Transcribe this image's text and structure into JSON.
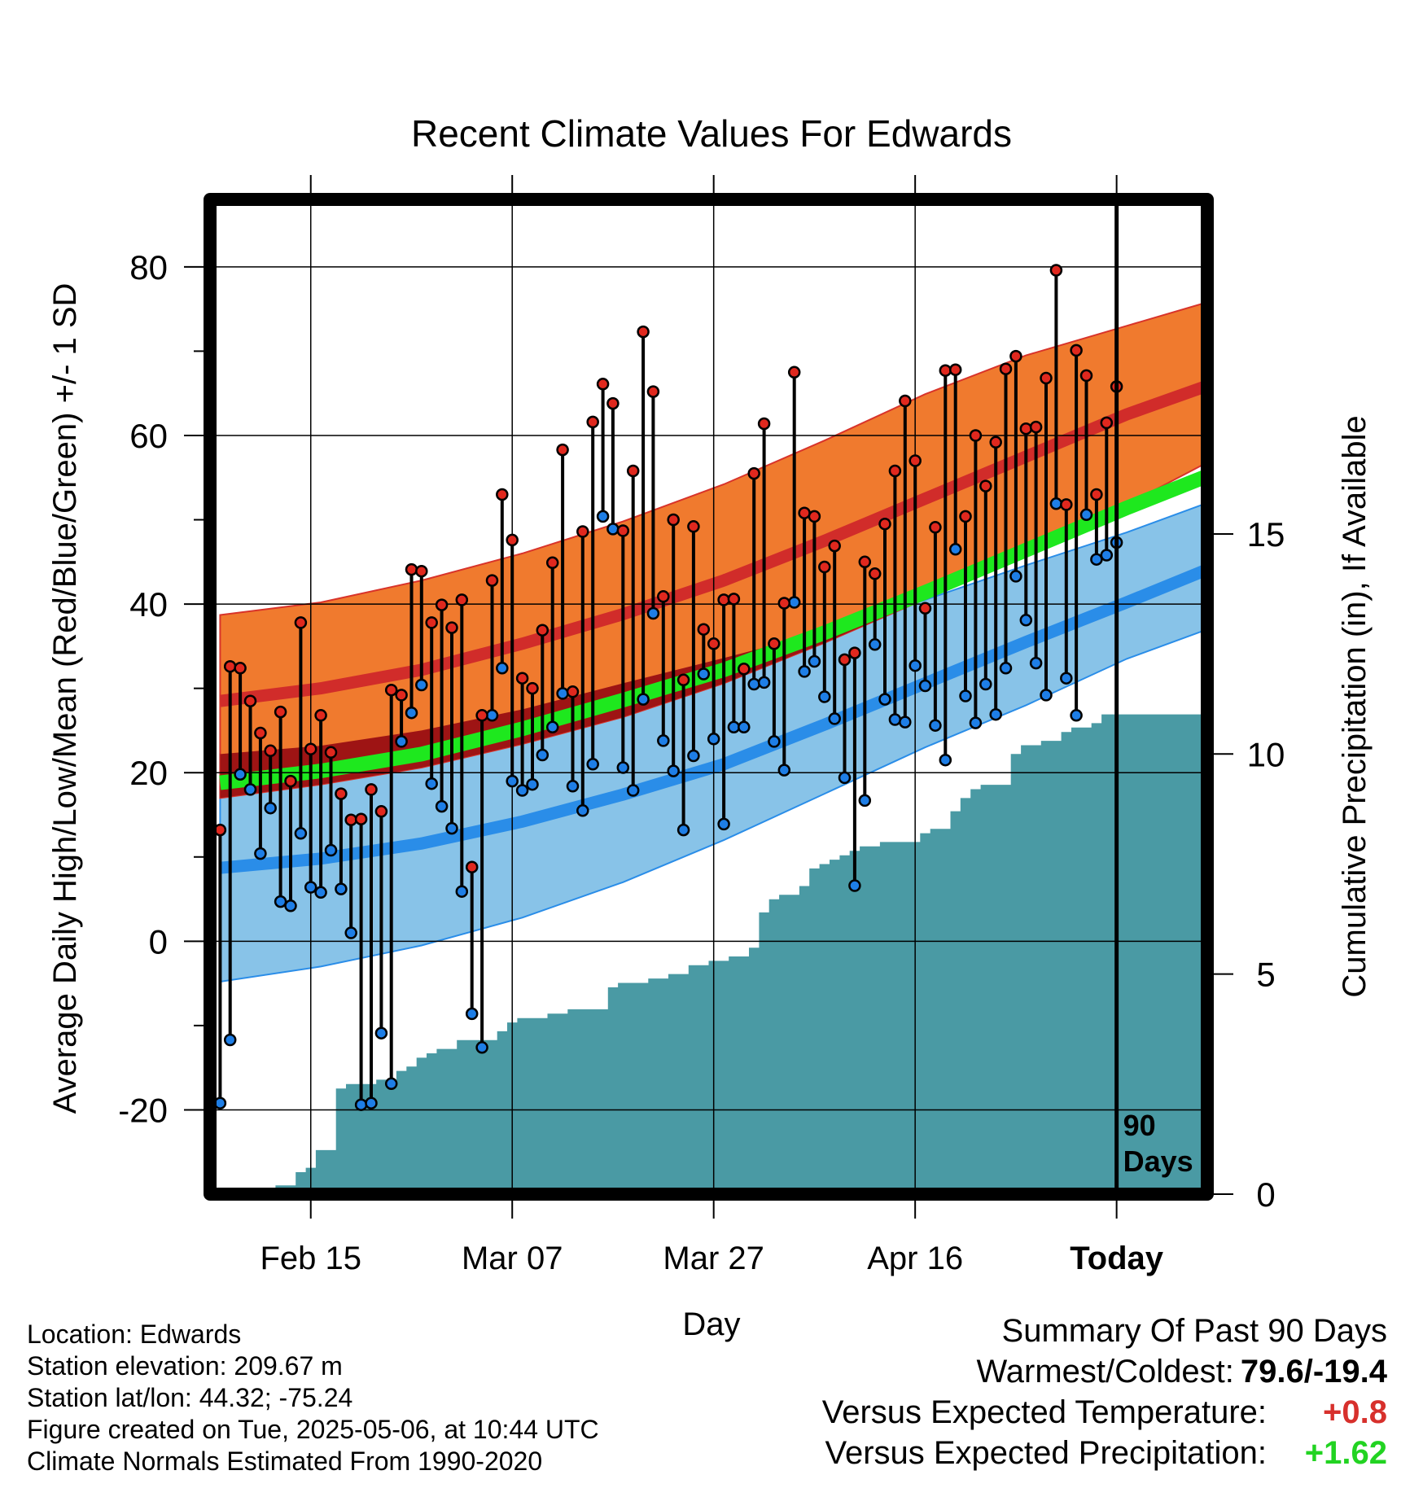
{
  "title": "Recent Climate Values For Edwards",
  "ylabel_left": "Average Daily High/Low/Mean (Red/Blue/Green) +/- 1 SD",
  "ylabel_right": "Cumulative Precipitation (in), If Available",
  "xlabel": "Day",
  "today_marker": {
    "label_line1": "90",
    "label_line2": "Days"
  },
  "footer": {
    "location": "Location: Edwards",
    "elevation": "Station elevation: 209.67 m",
    "latlon": "Station lat/lon: 44.32; -75.24",
    "created": "Figure created on Tue, 2025-05-06, at 10:44 UTC",
    "normals": "Climate Normals Estimated From 1990-2020"
  },
  "summary": {
    "heading": "Summary Of Past 90 Days",
    "warm_cold_label": "Warmest/Coldest:",
    "warm_cold_value": "79.6/-19.4",
    "temp_label": "Versus Expected Temperature:",
    "temp_value": "+0.8",
    "precip_label": "Versus Expected Precipitation:",
    "precip_value": "+1.62"
  },
  "colors": {
    "high_band": "#f07a2e",
    "high_mean": "#d12c2a",
    "low_band": "#88c3e8",
    "low_mean": "#2a8de8",
    "mean_band": "#1ee81e",
    "overlap": "#9e1414",
    "precip": "#4a9aa4",
    "high_dot": "#e0281e",
    "low_dot": "#1e7ee6"
  },
  "chart_data": {
    "type": "line",
    "x_unit": "day (Feb 5 to May 15, 2025)",
    "x_range": [
      "2025-02-05",
      "2025-05-15"
    ],
    "x_ticks": [
      {
        "date": "2025-02-15",
        "label": "Feb 15"
      },
      {
        "date": "2025-03-07",
        "label": "Mar 07"
      },
      {
        "date": "2025-03-27",
        "label": "Mar 27"
      },
      {
        "date": "2025-04-16",
        "label": "Apr 16"
      },
      {
        "date": "2025-05-06",
        "label": "Today"
      }
    ],
    "today": "2025-05-06",
    "y_left": {
      "range": [
        -30,
        88
      ],
      "ticks": [
        -20,
        0,
        20,
        40,
        60,
        80
      ]
    },
    "y_right": {
      "range": [
        0,
        22.6
      ],
      "ticks": [
        0,
        5,
        10,
        15
      ]
    },
    "normals": {
      "dates": [
        "2025-02-06",
        "2025-02-16",
        "2025-02-26",
        "2025-03-08",
        "2025-03-18",
        "2025-03-28",
        "2025-04-07",
        "2025-04-17",
        "2025-04-27",
        "2025-05-07",
        "2025-05-15"
      ],
      "high_mean": [
        28.5,
        30.0,
        32.2,
        35.3,
        38.8,
        42.8,
        47.5,
        52.5,
        57.5,
        62.5,
        65.9
      ],
      "high_upper": [
        38.7,
        40.2,
        42.8,
        46.0,
        49.8,
        54.2,
        59.4,
        64.9,
        69.5,
        73.0,
        75.8
      ],
      "high_lower": [
        17.0,
        18.6,
        20.6,
        23.4,
        26.6,
        30.6,
        35.4,
        40.6,
        45.6,
        51.8,
        56.8
      ],
      "mean_mean": [
        18.8,
        20.2,
        22.2,
        25.2,
        28.6,
        32.2,
        36.6,
        41.4,
        46.4,
        51.4,
        55.2
      ],
      "low_mean": [
        8.7,
        9.8,
        11.6,
        14.2,
        17.4,
        21.0,
        25.7,
        30.6,
        35.5,
        40.2,
        44.1
      ],
      "low_upper": [
        22.2,
        23.2,
        25.0,
        27.5,
        30.6,
        33.6,
        36.7,
        40.5,
        44.6,
        48.5,
        52.0
      ],
      "low_lower": [
        -4.8,
        -3.0,
        -0.5,
        2.8,
        7.0,
        12.0,
        17.5,
        23.0,
        28.0,
        33.5,
        37.0
      ]
    },
    "daily": {
      "start_date": "2025-02-06",
      "high": [
        13.2,
        32.6,
        32.4,
        28.5,
        24.7,
        22.6,
        27.2,
        19.0,
        37.8,
        22.8,
        26.8,
        22.4,
        17.5,
        14.4,
        14.5,
        18.0,
        15.4,
        29.8,
        29.2,
        44.1,
        43.9,
        37.8,
        39.9,
        37.2,
        40.5,
        8.8,
        26.8,
        42.8,
        53.0,
        47.6,
        31.2,
        30.0,
        36.9,
        44.9,
        58.3,
        29.6,
        48.6,
        61.6,
        66.1,
        63.8,
        48.7,
        55.8,
        72.3,
        65.2,
        40.9,
        50.0,
        31.0,
        49.2,
        37.0,
        35.3,
        40.5,
        40.6,
        32.3,
        55.5,
        61.4,
        35.3,
        40.1,
        67.5,
        50.8,
        50.4,
        44.4,
        46.9,
        33.4,
        34.2,
        45.0,
        43.6,
        49.5,
        55.8,
        64.1,
        57.0,
        39.5,
        49.1,
        67.7,
        67.8,
        50.4,
        60.0,
        54.0,
        59.2,
        67.9,
        69.4,
        60.8,
        61.0,
        66.8,
        79.6,
        51.8,
        70.1,
        67.1,
        53.0,
        61.5,
        65.8
      ],
      "low": [
        -19.2,
        -11.7,
        19.8,
        18.0,
        10.4,
        15.8,
        4.7,
        4.2,
        12.8,
        6.4,
        5.8,
        10.8,
        6.2,
        1.0,
        -19.4,
        -19.2,
        -10.9,
        -16.9,
        23.7,
        27.1,
        30.4,
        18.7,
        16.0,
        13.4,
        5.9,
        -8.6,
        -12.6,
        26.8,
        32.4,
        19.0,
        17.9,
        18.6,
        22.1,
        25.4,
        29.4,
        18.4,
        15.5,
        21.0,
        50.4,
        48.9,
        20.6,
        17.9,
        28.7,
        38.9,
        23.8,
        20.2,
        13.2,
        22.0,
        31.7,
        24.0,
        13.9,
        25.4,
        25.4,
        30.5,
        30.7,
        23.7,
        20.3,
        40.2,
        32.0,
        33.2,
        29.0,
        26.4,
        19.4,
        6.6,
        16.7,
        35.2,
        28.7,
        26.3,
        26.0,
        32.7,
        30.3,
        25.6,
        21.5,
        46.5,
        29.1,
        25.9,
        30.5,
        26.9,
        32.4,
        43.3,
        38.1,
        33.0,
        29.2,
        51.9,
        31.2,
        26.8,
        50.6,
        45.3,
        45.8,
        47.3
      ]
    },
    "precip_cumulative": {
      "start_date": "2025-02-06",
      "values": [
        0.0,
        0.0,
        0.0,
        0.0,
        0.1,
        0.1,
        0.2,
        0.2,
        0.5,
        0.6,
        1.0,
        1.0,
        2.4,
        2.5,
        2.5,
        2.5,
        2.6,
        2.6,
        2.8,
        2.9,
        3.1,
        3.2,
        3.3,
        3.3,
        3.5,
        3.5,
        3.5,
        3.5,
        3.7,
        3.9,
        4.0,
        4.0,
        4.0,
        4.1,
        4.1,
        4.2,
        4.2,
        4.2,
        4.2,
        4.7,
        4.8,
        4.8,
        4.8,
        4.9,
        4.9,
        5.0,
        5.0,
        5.2,
        5.2,
        5.3,
        5.3,
        5.4,
        5.4,
        5.6,
        6.4,
        6.7,
        6.8,
        6.8,
        7.0,
        7.4,
        7.5,
        7.6,
        7.7,
        7.8,
        7.9,
        7.9,
        8.0,
        8.0,
        8.0,
        8.0,
        8.2,
        8.3,
        8.3,
        8.7,
        9.0,
        9.2,
        9.3,
        9.3,
        9.3,
        10.0,
        10.2,
        10.2,
        10.3,
        10.3,
        10.5,
        10.6,
        10.6,
        10.7,
        10.9,
        10.9
      ]
    }
  }
}
